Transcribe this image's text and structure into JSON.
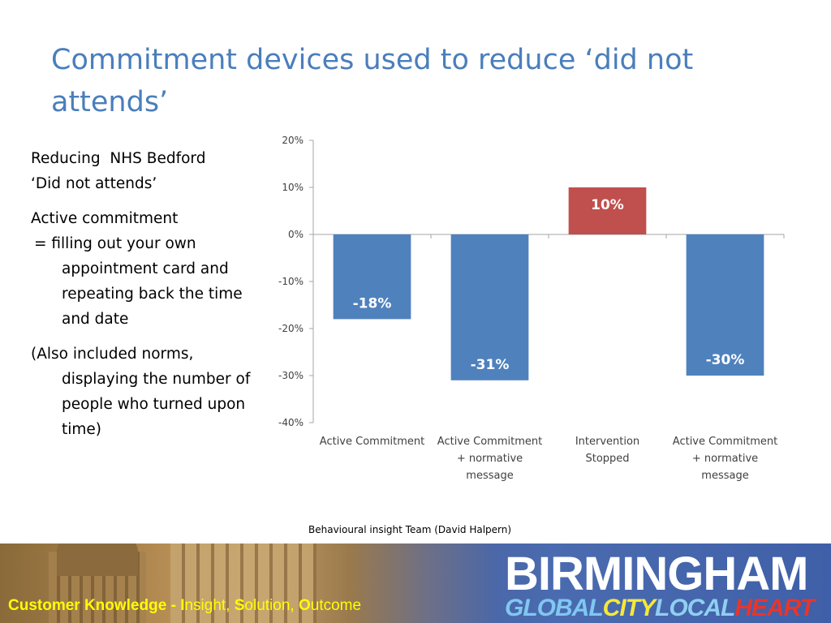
{
  "slide": {
    "title": "Commitment devices used to reduce ‘did not attends’",
    "body": {
      "line1": "Reducing  NHS Bedford",
      "line2": "‘Did not attends’",
      "line3": "Active commitment",
      "line4": " = filling out your own appointment card and repeating back the time and date",
      "line5": "(Also included norms, displaying the number of people who turned upon time)"
    },
    "source": "Behavioural insight Team (David Halpern)"
  },
  "chart_data": {
    "type": "bar",
    "categories": [
      [
        "Active Commitment"
      ],
      [
        "Active Commitment",
        "+ normative",
        "message"
      ],
      [
        "Intervention",
        "Stopped"
      ],
      [
        "Active Commitment",
        "+ normative",
        "message"
      ]
    ],
    "values": [
      -18,
      -31,
      10,
      -30
    ],
    "data_labels": [
      "-18%",
      "-31%",
      "10%",
      "-30%"
    ],
    "bar_colors": [
      "#4f81bd",
      "#4f81bd",
      "#c0504d",
      "#4f81bd"
    ],
    "ylim": [
      -40,
      20
    ],
    "yticks": [
      20,
      10,
      0,
      -10,
      -20,
      -30,
      -40
    ],
    "ytick_labels": [
      "20%",
      "10%",
      "0%",
      "-10%",
      "-20%",
      "-30%",
      "-40%"
    ],
    "title": "",
    "xlabel": "",
    "ylabel": "",
    "grid": false
  },
  "footer": {
    "tagline": {
      "part1": "Customer Knowledge - ",
      "i": "I",
      "nsight": "nsight, ",
      "s": "S",
      "olution": "olution, ",
      "o": "O",
      "utcome": "utcome"
    },
    "brand": "BIRMINGHAM",
    "brand_sub": {
      "w1": "GLOBAL",
      "w2": "CITY",
      "w3": "LOCAL",
      "w4": "HEART"
    }
  }
}
